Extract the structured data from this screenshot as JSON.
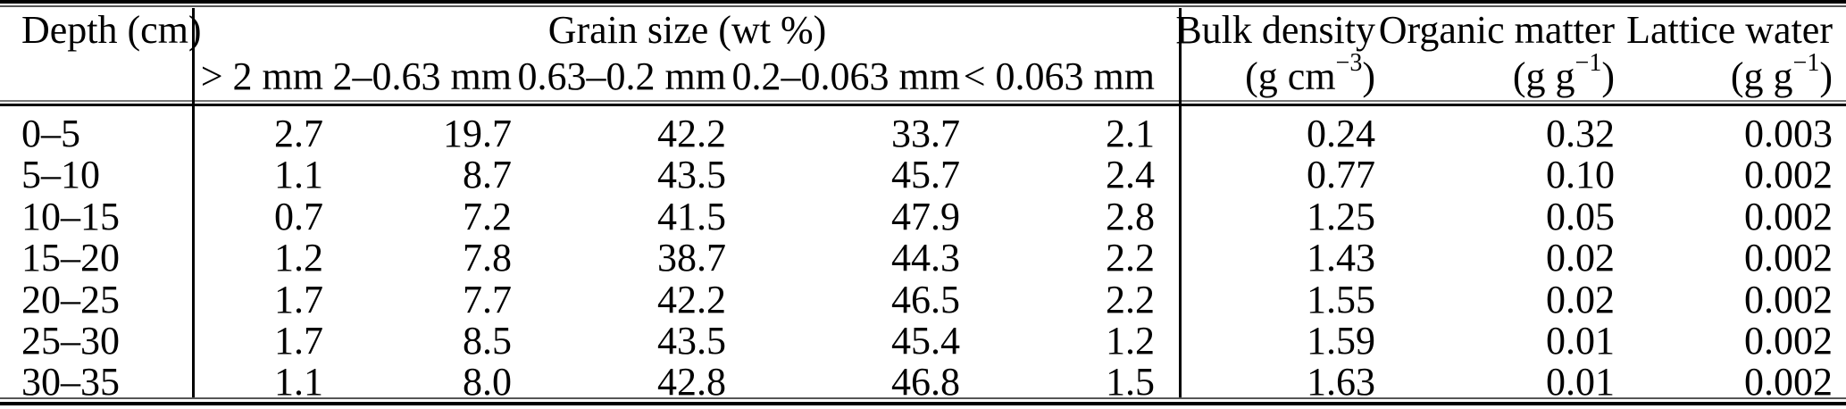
{
  "table": {
    "header": {
      "depth_label": "Depth (cm)",
      "grain_group_label": "Grain size (wt %)",
      "grain_sizes": [
        "> 2 mm",
        "2–0.63 mm",
        "0.63–0.2 mm",
        "0.2–0.063 mm",
        "< 0.063 mm"
      ],
      "bulk_density": {
        "label": "Bulk density",
        "unit_open": "(g cm",
        "unit_exp": "−3",
        "unit_close": ")"
      },
      "organic_matter": {
        "label": "Organic matter",
        "unit_open": "(g g",
        "unit_exp": "−1",
        "unit_close": ")"
      },
      "lattice_water": {
        "label": "Lattice water",
        "unit_open": "(g g",
        "unit_exp": "−1",
        "unit_close": ")"
      }
    },
    "rows": [
      [
        "0–5",
        "2.7",
        "19.7",
        "42.2",
        "33.7",
        "2.1",
        "0.24",
        "0.32",
        "0.003"
      ],
      [
        "5–10",
        "1.1",
        "8.7",
        "43.5",
        "45.7",
        "2.4",
        "0.77",
        "0.10",
        "0.002"
      ],
      [
        "10–15",
        "0.7",
        "7.2",
        "41.5",
        "47.9",
        "2.8",
        "1.25",
        "0.05",
        "0.002"
      ],
      [
        "15–20",
        "1.2",
        "7.8",
        "38.7",
        "44.3",
        "2.2",
        "1.43",
        "0.02",
        "0.002"
      ],
      [
        "20–25",
        "1.7",
        "7.7",
        "42.2",
        "46.5",
        "2.2",
        "1.55",
        "0.02",
        "0.002"
      ],
      [
        "25–30",
        "1.7",
        "8.5",
        "43.5",
        "45.4",
        "1.2",
        "1.59",
        "0.01",
        "0.002"
      ],
      [
        "30–35",
        "1.1",
        "8.0",
        "42.8",
        "46.8",
        "1.5",
        "1.63",
        "0.01",
        "0.002"
      ]
    ],
    "colors": {
      "text": "#000000",
      "rule": "#000000",
      "background": "#ffffff"
    }
  }
}
